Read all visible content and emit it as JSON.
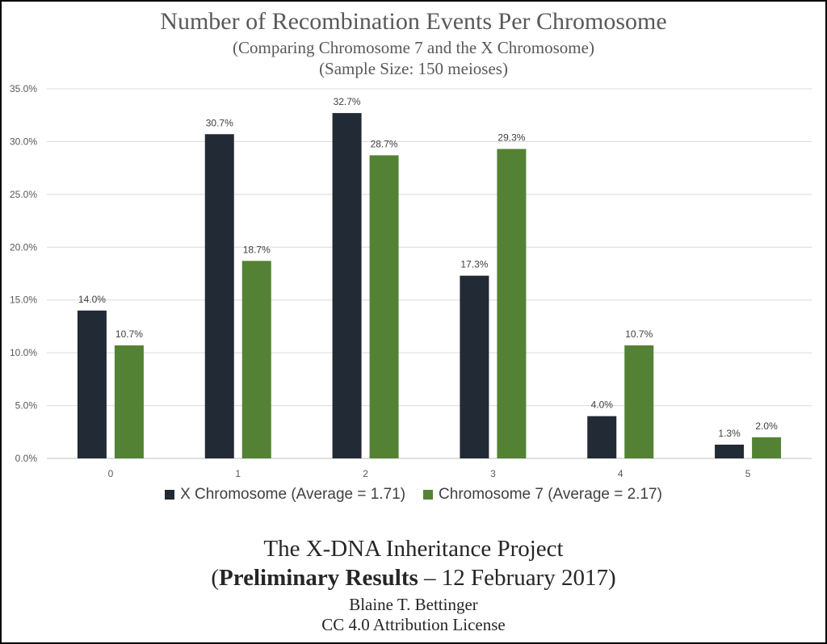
{
  "title": "Number of Recombination Events Per Chromosome",
  "subtitle": "(Comparing Chromosome 7 and the X Chromosome)",
  "subtitle2": "(Sample Size: 150 meioses)",
  "chart_data": {
    "type": "bar",
    "categories": [
      "0",
      "1",
      "2",
      "3",
      "4",
      "5"
    ],
    "series": [
      {
        "name": "X Chromosome (Average = 1.71)",
        "values": [
          14.0,
          30.7,
          32.7,
          17.3,
          4.0,
          1.3
        ],
        "color": "#222a35"
      },
      {
        "name": "Chromosome 7 (Average = 2.17)",
        "values": [
          10.7,
          18.7,
          28.7,
          29.3,
          10.7,
          2.0
        ],
        "color": "#548235"
      }
    ],
    "data_labels": [
      [
        "14.0%",
        "30.7%",
        "32.7%",
        "17.3%",
        "4.0%",
        "1.3%"
      ],
      [
        "10.7%",
        "18.7%",
        "28.7%",
        "29.3%",
        "10.7%",
        "2.0%"
      ]
    ],
    "yticks": [
      "0.0%",
      "5.0%",
      "10.0%",
      "15.0%",
      "20.0%",
      "25.0%",
      "30.0%",
      "35.0%"
    ],
    "ylim": [
      0,
      35
    ],
    "ylabel": "",
    "xlabel": "",
    "grid": true,
    "legend": "bottom",
    "gridline_color": "#d9d9d9"
  },
  "footer": {
    "line1": "The X-DNA Inheritance Project",
    "line2_bold": "Preliminary Results",
    "line2_rest": " – 12 February 2017",
    "line2_open": "(",
    "line2_close": ")",
    "line3": "Blaine T. Bettinger",
    "line4": "CC 4.0 Attribution License"
  }
}
